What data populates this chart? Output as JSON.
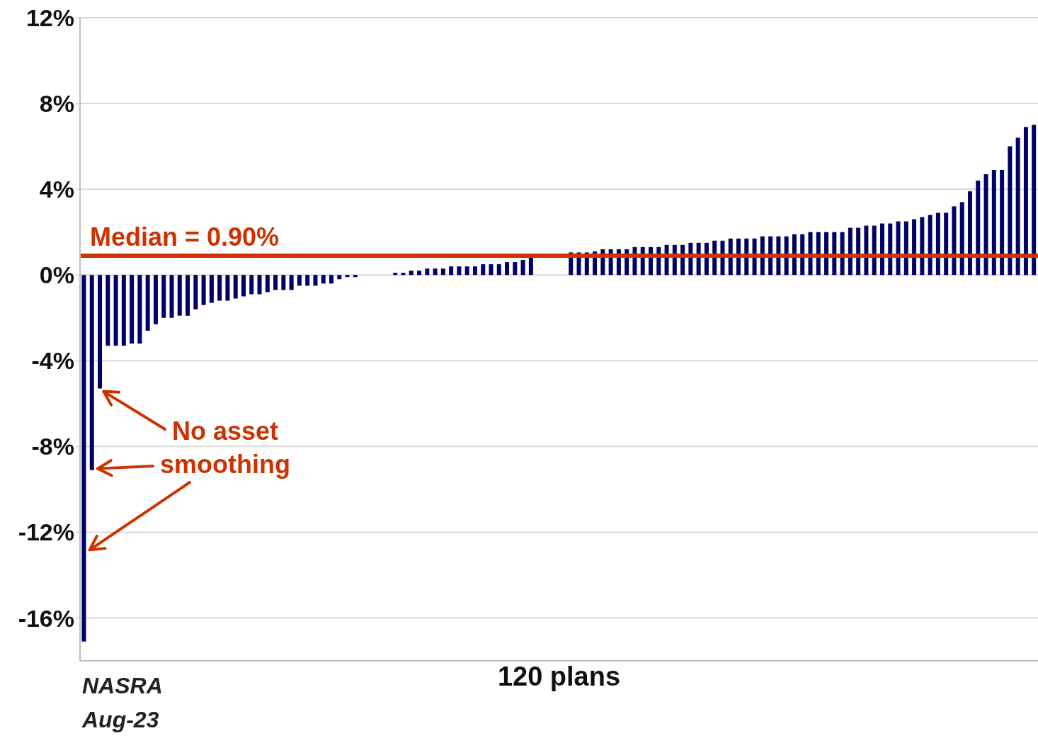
{
  "chart_data": {
    "type": "bar",
    "xlabel": "120 plans",
    "categories": [
      null,
      null,
      null,
      null,
      null,
      null,
      null,
      null,
      null,
      null,
      null,
      null,
      null,
      null,
      null,
      null,
      null,
      null,
      null,
      null,
      null,
      null,
      null,
      null,
      null,
      null,
      null,
      null,
      null,
      null,
      null,
      null,
      null,
      null,
      null,
      null,
      null,
      null,
      null,
      null,
      null,
      null,
      null,
      null,
      null,
      null,
      null,
      null,
      null,
      null,
      null,
      null,
      null,
      null,
      null,
      null,
      null,
      null,
      null,
      null,
      null,
      null,
      null,
      null,
      null,
      null,
      null,
      null,
      null,
      null,
      null,
      null,
      null,
      null,
      null,
      null,
      null,
      null,
      null,
      null,
      null,
      null,
      null,
      null,
      null,
      null,
      null,
      null,
      null,
      null,
      null,
      null,
      null,
      null,
      null,
      null,
      null,
      null,
      null,
      null,
      null,
      null,
      null,
      null,
      null,
      null,
      null,
      null,
      null,
      null,
      null,
      null,
      null,
      null,
      null,
      null,
      null,
      null,
      null,
      null
    ],
    "values": [
      -17.1,
      -9.1,
      -5.3,
      -3.3,
      -3.3,
      -3.3,
      -3.2,
      -3.2,
      -2.6,
      -2.3,
      -2.0,
      -2.0,
      -1.9,
      -1.9,
      -1.6,
      -1.4,
      -1.3,
      -1.2,
      -1.2,
      -1.1,
      -1.0,
      -0.9,
      -0.9,
      -0.8,
      -0.7,
      -0.7,
      -0.7,
      -0.5,
      -0.5,
      -0.5,
      -0.4,
      -0.4,
      -0.2,
      -0.1,
      -0.1,
      0,
      0,
      0,
      0,
      0.1,
      0.1,
      0.2,
      0.2,
      0.3,
      0.3,
      0.3,
      0.4,
      0.4,
      0.4,
      0.4,
      0.5,
      0.5,
      0.5,
      0.6,
      0.6,
      0.7,
      0.8,
      null,
      null,
      null,
      null,
      1.05,
      1.05,
      1.05,
      1.1,
      1.2,
      1.2,
      1.2,
      1.2,
      1.3,
      1.3,
      1.3,
      1.3,
      1.4,
      1.4,
      1.4,
      1.5,
      1.5,
      1.5,
      1.6,
      1.6,
      1.7,
      1.7,
      1.7,
      1.7,
      1.8,
      1.8,
      1.8,
      1.8,
      1.9,
      1.9,
      2.0,
      2.0,
      2.0,
      2.0,
      2.0,
      2.2,
      2.2,
      2.3,
      2.3,
      2.4,
      2.4,
      2.5,
      2.5,
      2.6,
      2.7,
      2.8,
      2.9,
      2.9,
      3.2,
      3.4,
      3.9,
      4.4,
      4.7,
      4.9,
      4.9,
      6.0,
      6.4,
      6.9,
      7.0
    ],
    "color": "#000066",
    "ylim": [
      -18,
      12
    ],
    "yticks": [
      {
        "value": 12,
        "label": "12%"
      },
      {
        "value": 8,
        "label": "8%"
      },
      {
        "value": 4,
        "label": "4%"
      },
      {
        "value": 0,
        "label": "0%"
      },
      {
        "value": -4,
        "label": "-4%"
      },
      {
        "value": -8,
        "label": "-8%"
      },
      {
        "value": -12,
        "label": "-12%"
      },
      {
        "value": -16,
        "label": "-16%"
      }
    ],
    "grid": "y",
    "tick_labels": "y",
    "ref_lines": [
      {
        "axis": "y",
        "value": 0.9,
        "label": "Median = 0.90%",
        "color": "#cc3300"
      }
    ],
    "annotations": [
      "No asset smoothing",
      "NASRA",
      "Aug-23"
    ]
  }
}
